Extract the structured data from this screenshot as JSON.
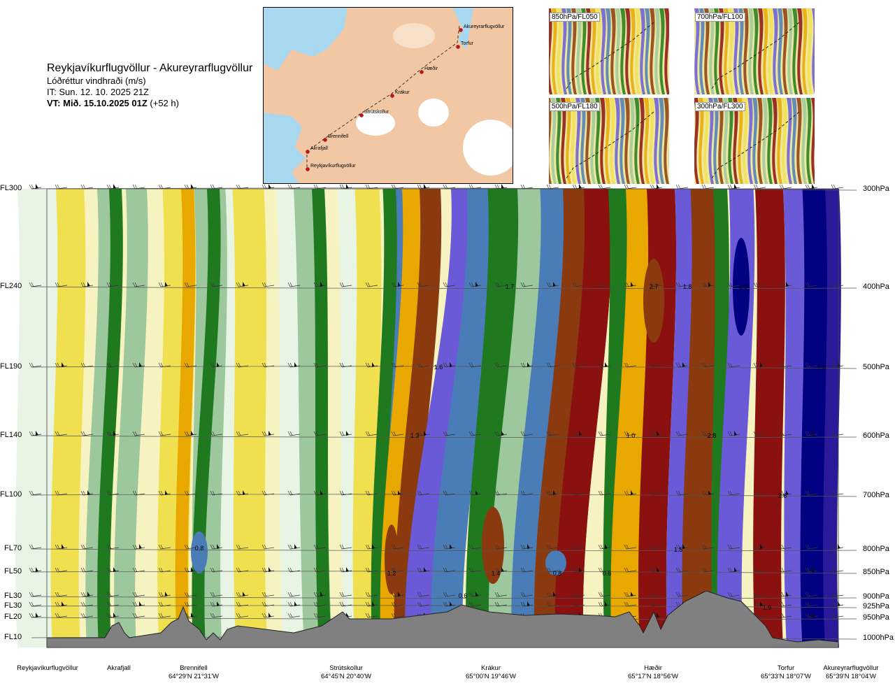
{
  "header": {
    "route": "Reykjavíkurflugvöllur - Akureyrarflugvöllur",
    "parameter": "Lóðréttur vindhraði (m/s)",
    "issue_time": "IT: Sun. 12. 10. 2025 21Z",
    "valid_time_bold": "VT: Mið. 15.10.2025 01Z",
    "valid_time_suffix": " (+52 h)"
  },
  "map": {
    "points": [
      {
        "name": "Akureyrarflugvöllur"
      },
      {
        "name": "Torfur"
      },
      {
        "name": "Hæðir"
      },
      {
        "name": "Krákur"
      },
      {
        "name": "Strútskollur"
      },
      {
        "name": "Brennifell"
      },
      {
        "name": "Akrafjall"
      },
      {
        "name": "Reykjavíkurflugvöllur"
      }
    ]
  },
  "mini_maps": [
    {
      "label": "850hPa/FL050"
    },
    {
      "label": "700hPa/FL100"
    },
    {
      "label": "500hPa/FL180"
    },
    {
      "label": "300hPa/FL300"
    }
  ],
  "colors": {
    "strong_down": "#000080",
    "down3": "#2a1a9a",
    "down2": "#6a5ad8",
    "down1": "#4a7cb8",
    "down0": "#1f7a1f",
    "weak": "#9dc89d",
    "neutral": "#e8f4e4",
    "up0": "#f0e050",
    "up1": "#e8a800",
    "up2": "#c86010",
    "up3": "#8b3a10",
    "strong_up": "#8b1010",
    "terrain": "#808080"
  },
  "chart_data": {
    "type": "heatmap",
    "title": "Lóðréttur vindhraði (m/s)",
    "levels": [
      {
        "fl": "FL300",
        "hpa": "300hPa"
      },
      {
        "fl": "FL240",
        "hpa": "400hPa"
      },
      {
        "fl": "FL190",
        "hpa": "500hPa"
      },
      {
        "fl": "FL140",
        "hpa": "600hPa"
      },
      {
        "fl": "FL100",
        "hpa": "700hPa"
      },
      {
        "fl": "FL70",
        "hpa": "800hPa"
      },
      {
        "fl": "FL50",
        "hpa": "850hPa"
      },
      {
        "fl": "FL30",
        "hpa": "900hPa"
      },
      {
        "fl": "FL30",
        "hpa": "925hPa"
      },
      {
        "fl": "FL20",
        "hpa": "950hPa"
      },
      {
        "fl": "FL10",
        "hpa": "1000hPa"
      }
    ],
    "locations": [
      {
        "name": "Reykjavíkurflugvöllur",
        "coord": ""
      },
      {
        "name": "Akrafjall",
        "coord": ""
      },
      {
        "name": "Brennifell",
        "coord": "64°29'N 21°31'W"
      },
      {
        "name": "Strútskollur",
        "coord": "64°45'N 20°40'W"
      },
      {
        "name": "Krákur",
        "coord": "65°00'N 19°46'W"
      },
      {
        "name": "Hæðir",
        "coord": "65°17'N 18°56'W"
      },
      {
        "name": "Torfur",
        "coord": "65°33'N 18°07'W"
      },
      {
        "name": "Akureyrarflugvöllur",
        "coord": "65°39'N 18°04'W"
      }
    ],
    "annotations": [
      "1.7",
      "2.7",
      "1.8",
      "2.8",
      "1.6",
      "1.8",
      "1.3",
      "1.0",
      "2.8",
      "2.6",
      "0.8",
      "1.5",
      "1.2",
      "1.4",
      "0.8",
      "0.6",
      "0.6",
      "1.9"
    ]
  }
}
